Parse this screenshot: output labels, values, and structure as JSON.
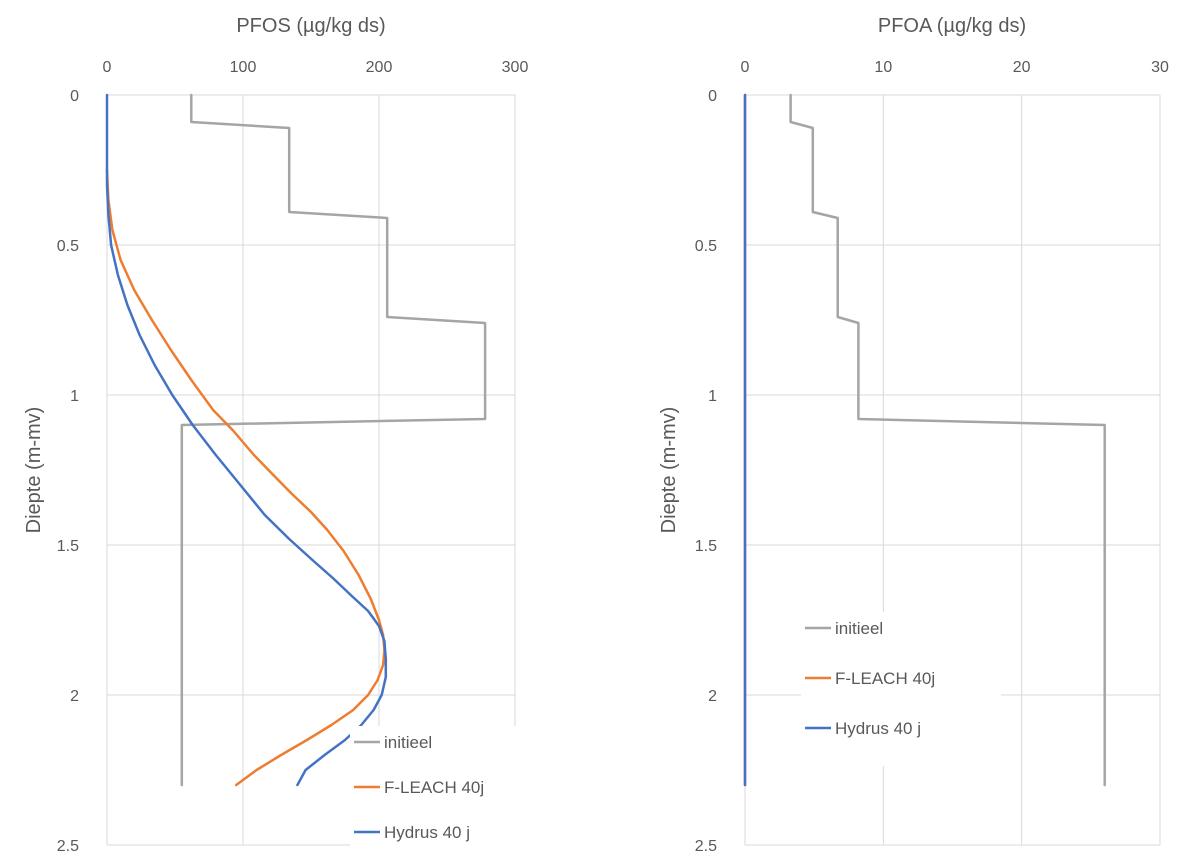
{
  "colors": {
    "initieel": "#a5a5a5",
    "fleach": "#ed7d31",
    "hydrus": "#4472c4",
    "grid": "#d9d9d9",
    "text": "#595959"
  },
  "chart_data": [
    {
      "type": "line",
      "title": "PFOS (µg/kg ds)",
      "xlabel": "",
      "ylabel": "Diepte (m-mv)",
      "xlim": [
        0,
        300
      ],
      "ylim": [
        0,
        2.5
      ],
      "y_reversed": true,
      "x_ticks": [
        0,
        100,
        200,
        300
      ],
      "y_ticks": [
        0,
        0.5,
        1,
        1.5,
        2,
        2.5
      ],
      "x_tick_labels": [
        "0",
        "100",
        "200",
        "300"
      ],
      "y_tick_labels": [
        "0",
        "0.5",
        "1",
        "1.5",
        "2",
        "2.5"
      ],
      "grid": true,
      "legend_position": "bottom-right",
      "series": [
        {
          "name": "initieel",
          "color": "#a5a5a5",
          "x": [
            62,
            62,
            134,
            134,
            206,
            206,
            278,
            278,
            55,
            55
          ],
          "y": [
            0,
            0.09,
            0.11,
            0.39,
            0.41,
            0.74,
            0.76,
            1.08,
            1.1,
            2.3
          ]
        },
        {
          "name": "F-LEACH 40j",
          "color": "#ed7d31",
          "x": [
            0,
            1,
            4,
            10,
            20,
            33,
            47,
            62,
            78,
            93,
            108,
            123,
            136,
            150,
            162,
            174,
            185,
            194,
            200,
            203,
            204,
            203,
            199,
            192,
            181,
            165,
            147,
            128,
            110,
            95
          ],
          "y": [
            0.25,
            0.35,
            0.45,
            0.55,
            0.65,
            0.75,
            0.85,
            0.95,
            1.05,
            1.12,
            1.2,
            1.27,
            1.33,
            1.39,
            1.45,
            1.52,
            1.6,
            1.68,
            1.75,
            1.8,
            1.85,
            1.9,
            1.95,
            2.0,
            2.05,
            2.1,
            2.15,
            2.2,
            2.25,
            2.3
          ]
        },
        {
          "name": "Hydrus 40 j",
          "color": "#4472c4",
          "x": [
            0,
            0,
            1,
            3,
            8,
            15,
            24,
            35,
            48,
            63,
            80,
            98,
            116,
            134,
            151,
            166,
            180,
            192,
            200,
            204,
            205,
            205,
            202,
            196,
            187,
            175,
            160,
            146,
            140
          ],
          "y": [
            0,
            0.3,
            0.4,
            0.5,
            0.6,
            0.7,
            0.8,
            0.9,
            1.0,
            1.1,
            1.2,
            1.3,
            1.4,
            1.48,
            1.55,
            1.61,
            1.67,
            1.72,
            1.77,
            1.82,
            1.88,
            1.94,
            2.0,
            2.05,
            2.1,
            2.15,
            2.2,
            2.25,
            2.3
          ]
        }
      ]
    },
    {
      "type": "line",
      "title": "PFOA (µg/kg ds)",
      "xlabel": "",
      "ylabel": "Diepte (m-mv)",
      "xlim": [
        0,
        30
      ],
      "ylim": [
        0,
        2.5
      ],
      "y_reversed": true,
      "x_ticks": [
        0,
        10,
        20,
        30
      ],
      "y_ticks": [
        0,
        0.5,
        1,
        1.5,
        2,
        2.5
      ],
      "x_tick_labels": [
        "0",
        "10",
        "20",
        "30"
      ],
      "y_tick_labels": [
        "0",
        "0.5",
        "1",
        "1.5",
        "2",
        "2.5"
      ],
      "grid": true,
      "legend_position": "middle-right",
      "series": [
        {
          "name": "initieel",
          "color": "#a5a5a5",
          "x": [
            3.3,
            3.3,
            4.9,
            4.9,
            6.7,
            6.7,
            8.2,
            8.2,
            26,
            26
          ],
          "y": [
            0,
            0.09,
            0.11,
            0.39,
            0.41,
            0.74,
            0.76,
            1.08,
            1.1,
            2.3
          ]
        },
        {
          "name": "F-LEACH 40j",
          "color": "#ed7d31",
          "x": [
            0,
            0
          ],
          "y": [
            0,
            2.3
          ]
        },
        {
          "name": "Hydrus 40 j",
          "color": "#4472c4",
          "x": [
            0,
            0
          ],
          "y": [
            0,
            2.3
          ]
        }
      ]
    }
  ]
}
